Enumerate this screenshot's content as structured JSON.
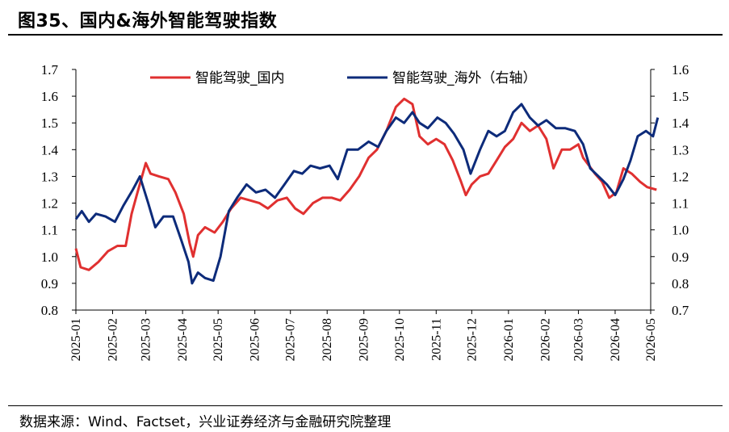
{
  "header": {
    "title": "图35、国内&海外智能驾驶指数"
  },
  "footer": {
    "source": "数据来源：Wind、Factset，兴业证券经济与金融研究院整理"
  },
  "chart_data": {
    "type": "line",
    "legend_position": "top-center",
    "grid": false,
    "x_tick_labels": [
      "2025-01",
      "2025-02",
      "2025-03",
      "2025-04",
      "2025-05",
      "2025-06",
      "2025-07",
      "2025-08",
      "2025-09",
      "2025-10",
      "2025-11",
      "2025-12",
      "2026-01",
      "2026-02",
      "2026-03",
      "2026-04",
      "2026-05"
    ],
    "y_left": {
      "range": [
        0.8,
        1.7
      ],
      "ticks": [
        "0.8",
        "0.9",
        "1.0",
        "1.1",
        "1.2",
        "1.3",
        "1.4",
        "1.5",
        "1.6",
        "1.7"
      ]
    },
    "y_right": {
      "range": [
        0.7,
        1.6
      ],
      "ticks": [
        "0.7",
        "0.8",
        "0.9",
        "1.0",
        "1.1",
        "1.2",
        "1.3",
        "1.4",
        "1.5",
        "1.6"
      ]
    },
    "series": [
      {
        "name": "智能驾驶_国内",
        "axis": "left",
        "color": "#e03030",
        "points": [
          [
            "2025-01-01",
            1.03
          ],
          [
            "2025-01-05",
            0.96
          ],
          [
            "2025-01-12",
            0.95
          ],
          [
            "2025-01-20",
            0.98
          ],
          [
            "2025-01-28",
            1.02
          ],
          [
            "2025-02-05",
            1.04
          ],
          [
            "2025-02-12",
            1.04
          ],
          [
            "2025-02-17",
            1.16
          ],
          [
            "2025-02-22",
            1.24
          ],
          [
            "2025-03-01",
            1.35
          ],
          [
            "2025-03-05",
            1.31
          ],
          [
            "2025-03-12",
            1.3
          ],
          [
            "2025-03-20",
            1.29
          ],
          [
            "2025-03-26",
            1.24
          ],
          [
            "2025-04-02",
            1.16
          ],
          [
            "2025-04-07",
            1.05
          ],
          [
            "2025-04-10",
            1.0
          ],
          [
            "2025-04-14",
            1.08
          ],
          [
            "2025-04-20",
            1.11
          ],
          [
            "2025-04-28",
            1.09
          ],
          [
            "2025-05-05",
            1.13
          ],
          [
            "2025-05-12",
            1.18
          ],
          [
            "2025-05-20",
            1.22
          ],
          [
            "2025-05-28",
            1.21
          ],
          [
            "2025-06-05",
            1.2
          ],
          [
            "2025-06-12",
            1.18
          ],
          [
            "2025-06-20",
            1.21
          ],
          [
            "2025-06-28",
            1.22
          ],
          [
            "2025-07-05",
            1.18
          ],
          [
            "2025-07-12",
            1.16
          ],
          [
            "2025-07-20",
            1.2
          ],
          [
            "2025-07-28",
            1.22
          ],
          [
            "2025-08-05",
            1.22
          ],
          [
            "2025-08-12",
            1.21
          ],
          [
            "2025-08-20",
            1.25
          ],
          [
            "2025-08-28",
            1.3
          ],
          [
            "2025-09-05",
            1.37
          ],
          [
            "2025-09-12",
            1.4
          ],
          [
            "2025-09-20",
            1.47
          ],
          [
            "2025-09-28",
            1.56
          ],
          [
            "2025-10-05",
            1.59
          ],
          [
            "2025-10-12",
            1.57
          ],
          [
            "2025-10-18",
            1.45
          ],
          [
            "2025-10-25",
            1.42
          ],
          [
            "2025-11-01",
            1.44
          ],
          [
            "2025-11-08",
            1.42
          ],
          [
            "2025-11-15",
            1.36
          ],
          [
            "2025-11-22",
            1.28
          ],
          [
            "2025-11-26",
            1.23
          ],
          [
            "2025-12-01",
            1.27
          ],
          [
            "2025-12-08",
            1.3
          ],
          [
            "2025-12-15",
            1.31
          ],
          [
            "2025-12-22",
            1.36
          ],
          [
            "2025-12-29",
            1.41
          ],
          [
            "2026-01-05",
            1.44
          ],
          [
            "2026-01-12",
            1.5
          ],
          [
            "2026-01-19",
            1.47
          ],
          [
            "2026-01-26",
            1.49
          ],
          [
            "2026-02-02",
            1.44
          ],
          [
            "2026-02-08",
            1.33
          ],
          [
            "2026-02-15",
            1.4
          ],
          [
            "2026-02-22",
            1.4
          ],
          [
            "2026-03-01",
            1.42
          ],
          [
            "2026-03-05",
            1.37
          ],
          [
            "2026-03-10",
            1.34
          ],
          [
            "2026-03-15",
            1.31
          ],
          [
            "2026-03-21",
            1.28
          ],
          [
            "2026-03-27",
            1.22
          ],
          [
            "2026-04-02",
            1.24
          ],
          [
            "2026-04-08",
            1.33
          ],
          [
            "2026-04-15",
            1.31
          ],
          [
            "2026-04-22",
            1.28
          ],
          [
            "2026-04-28",
            1.26
          ],
          [
            "2026-05-06",
            1.25
          ]
        ]
      },
      {
        "name": "智能驾驶_海外（右轴）",
        "axis": "right",
        "color": "#0d2b7a",
        "points": [
          [
            "2025-01-01",
            1.04
          ],
          [
            "2025-01-06",
            1.07
          ],
          [
            "2025-01-12",
            1.03
          ],
          [
            "2025-01-18",
            1.06
          ],
          [
            "2025-01-26",
            1.05
          ],
          [
            "2025-02-03",
            1.03
          ],
          [
            "2025-02-10",
            1.09
          ],
          [
            "2025-02-18",
            1.15
          ],
          [
            "2025-02-24",
            1.2
          ],
          [
            "2025-03-03",
            1.1
          ],
          [
            "2025-03-09",
            1.01
          ],
          [
            "2025-03-16",
            1.05
          ],
          [
            "2025-03-24",
            1.05
          ],
          [
            "2025-03-31",
            0.96
          ],
          [
            "2025-04-06",
            0.88
          ],
          [
            "2025-04-09",
            0.8
          ],
          [
            "2025-04-14",
            0.84
          ],
          [
            "2025-04-20",
            0.82
          ],
          [
            "2025-04-27",
            0.81
          ],
          [
            "2025-05-03",
            0.9
          ],
          [
            "2025-05-10",
            1.07
          ],
          [
            "2025-05-17",
            1.12
          ],
          [
            "2025-05-25",
            1.17
          ],
          [
            "2025-06-02",
            1.14
          ],
          [
            "2025-06-10",
            1.15
          ],
          [
            "2025-06-18",
            1.12
          ],
          [
            "2025-06-26",
            1.17
          ],
          [
            "2025-07-04",
            1.22
          ],
          [
            "2025-07-11",
            1.21
          ],
          [
            "2025-07-18",
            1.24
          ],
          [
            "2025-07-26",
            1.23
          ],
          [
            "2025-08-03",
            1.24
          ],
          [
            "2025-08-10",
            1.19
          ],
          [
            "2025-08-18",
            1.3
          ],
          [
            "2025-08-27",
            1.3
          ],
          [
            "2025-09-05",
            1.33
          ],
          [
            "2025-09-13",
            1.31
          ],
          [
            "2025-09-20",
            1.37
          ],
          [
            "2025-09-28",
            1.42
          ],
          [
            "2025-10-05",
            1.4
          ],
          [
            "2025-10-12",
            1.44
          ],
          [
            "2025-10-18",
            1.4
          ],
          [
            "2025-10-25",
            1.38
          ],
          [
            "2025-11-02",
            1.42
          ],
          [
            "2025-11-09",
            1.4
          ],
          [
            "2025-11-16",
            1.36
          ],
          [
            "2025-11-24",
            1.3
          ],
          [
            "2025-11-30",
            1.21
          ],
          [
            "2025-12-08",
            1.3
          ],
          [
            "2025-12-15",
            1.37
          ],
          [
            "2025-12-22",
            1.35
          ],
          [
            "2025-12-29",
            1.37
          ],
          [
            "2026-01-05",
            1.44
          ],
          [
            "2026-01-12",
            1.47
          ],
          [
            "2026-01-19",
            1.42
          ],
          [
            "2026-01-26",
            1.39
          ],
          [
            "2026-02-02",
            1.41
          ],
          [
            "2026-02-10",
            1.38
          ],
          [
            "2026-02-18",
            1.38
          ],
          [
            "2026-02-26",
            1.37
          ],
          [
            "2026-03-05",
            1.32
          ],
          [
            "2026-03-11",
            1.23
          ],
          [
            "2026-03-18",
            1.2
          ],
          [
            "2026-03-25",
            1.17
          ],
          [
            "2026-04-01",
            1.13
          ],
          [
            "2026-04-08",
            1.19
          ],
          [
            "2026-04-14",
            1.26
          ],
          [
            "2026-04-20",
            1.35
          ],
          [
            "2026-04-27",
            1.37
          ],
          [
            "2026-05-03",
            1.35
          ],
          [
            "2026-05-07",
            1.42
          ]
        ]
      }
    ]
  }
}
